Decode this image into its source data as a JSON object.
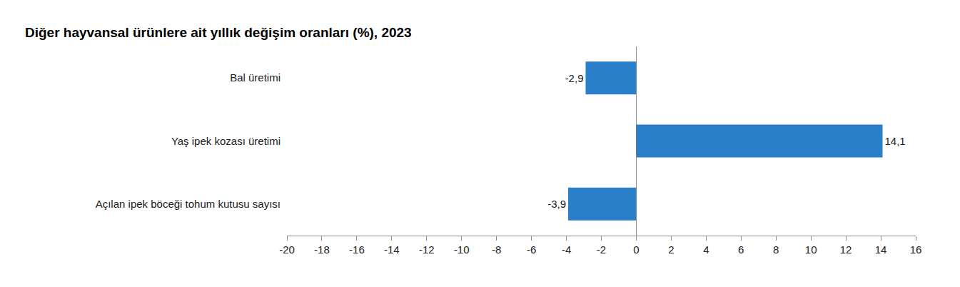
{
  "chart_data": {
    "type": "bar",
    "orientation": "horizontal",
    "title": "Diğer hayvansal ürünlere ait yıllık değişim oranları (%), 2023",
    "categories": [
      "Bal üretimi",
      "Yaş ipek kozası üretimi",
      "Açılan ipek böceği tohum kutusu sayısı"
    ],
    "values": [
      -2.9,
      14.1,
      -3.9
    ],
    "value_labels": [
      "-2,9",
      "14,1",
      "-3,9"
    ],
    "color": "#2a7fc9",
    "data_labels": true,
    "grid": false,
    "xlim": [
      -20,
      16
    ],
    "xticks": [
      -20,
      -18,
      -16,
      -14,
      -12,
      -10,
      -8,
      -6,
      -4,
      -2,
      0,
      2,
      4,
      6,
      8,
      10,
      12,
      14,
      16
    ]
  }
}
